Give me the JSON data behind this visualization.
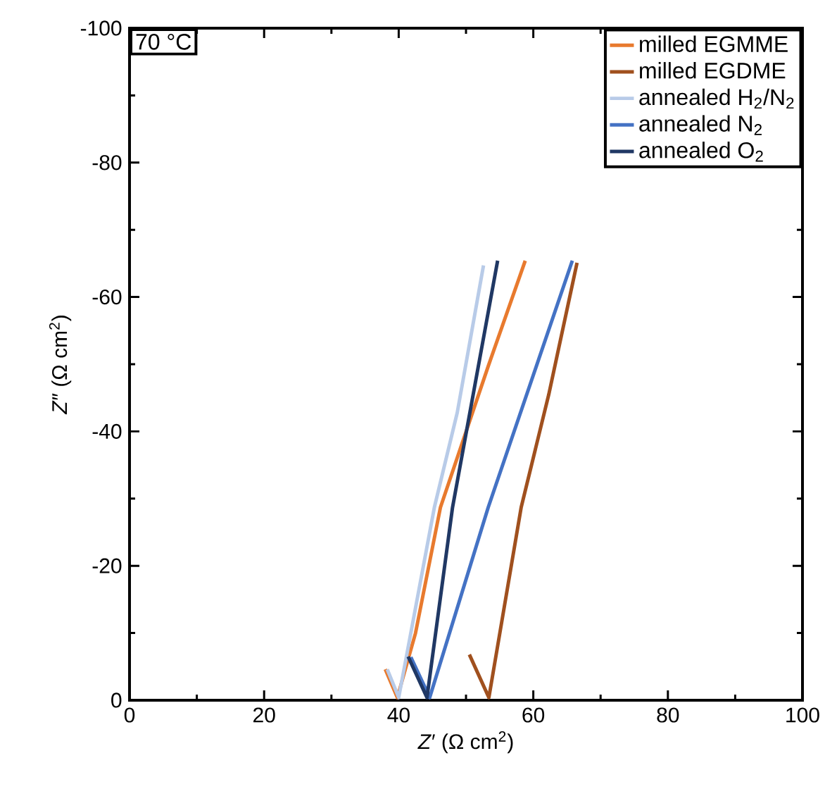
{
  "chart_data": {
    "type": "line",
    "xlabel": "*Z*′ (Ω cm$^{2}$)",
    "ylabel": "*Z*″ (Ω cm$^{2}$)",
    "annotations": [
      "70 °C"
    ],
    "xlim": [
      0,
      100
    ],
    "ylim": [
      0,
      -100
    ],
    "xticks": [
      0,
      20,
      40,
      60,
      80,
      100
    ],
    "yticks": [
      0,
      -20,
      -40,
      -60,
      -80,
      -100
    ],
    "legend": "top right",
    "series": [
      {
        "name": "milled EGMME",
        "color": "#e87a2e",
        "x": [
          38.0,
          39.8,
          42.5,
          46.2,
          53.3,
          58.8
        ],
        "values": [
          -4.6,
          -0.4,
          -10,
          -28.7,
          -49.7,
          -65.4
        ]
      },
      {
        "name": "milled EGDME",
        "color": "#a0501e",
        "x": [
          50.5,
          53.4,
          58.2,
          62.3,
          66.5
        ],
        "values": [
          -6.8,
          -0.4,
          -28.7,
          -45.5,
          -65.1
        ]
      },
      {
        "name": "annealed H$_{2}$/N$_{2}$",
        "color": "#b8cbe8",
        "x": [
          38.3,
          40.0,
          45.3,
          48.7,
          52.6
        ],
        "values": [
          -4.6,
          -0.4,
          -28.7,
          -42.8,
          -64.7
        ]
      },
      {
        "name": "annealed N$_{2}$",
        "color": "#4472c4",
        "x": [
          41.8,
          44.6,
          53.3,
          65.8
        ],
        "values": [
          -6.4,
          -0.4,
          -28.7,
          -65.4
        ]
      },
      {
        "name": "annealed O$_{2}$",
        "color": "#203864",
        "x": [
          41.4,
          44.2,
          48.0,
          54.7
        ],
        "values": [
          -6.5,
          -0.4,
          -28.7,
          -65.4
        ]
      }
    ]
  }
}
